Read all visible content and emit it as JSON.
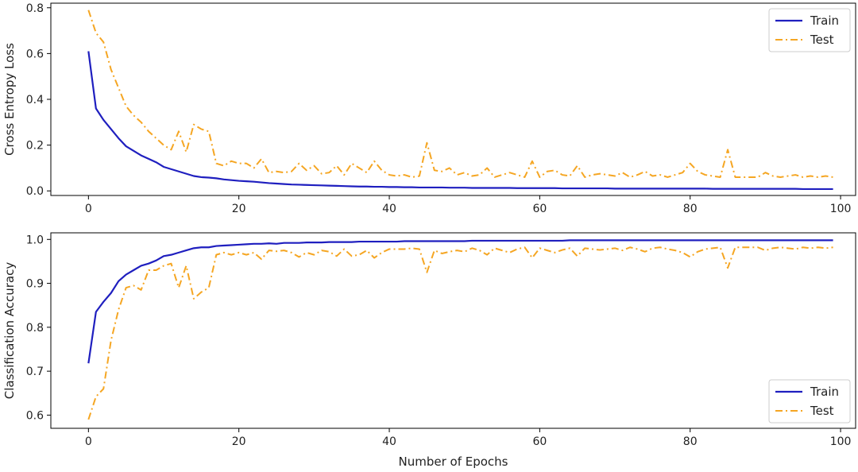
{
  "chart_data": [
    {
      "type": "line",
      "title": "",
      "xlabel": "",
      "ylabel": "Cross Entropy Loss",
      "xlim": [
        -5,
        102
      ],
      "ylim": [
        -0.02,
        0.82
      ],
      "xticks": [
        0,
        20,
        40,
        60,
        80,
        100
      ],
      "xtick_labels": [
        "0",
        "20",
        "40",
        "60",
        "80",
        "100"
      ],
      "yticks": [
        0.0,
        0.2,
        0.4,
        0.6,
        0.8
      ],
      "ytick_labels": [
        "0.0",
        "0.2",
        "0.4",
        "0.6",
        "0.8"
      ],
      "legend_position": "top-right",
      "series": [
        {
          "name": "Train",
          "color": "#1f1fbf",
          "style": "solid",
          "x": [
            0,
            1,
            2,
            3,
            4,
            5,
            6,
            7,
            8,
            9,
            10,
            11,
            12,
            13,
            14,
            15,
            16,
            17,
            18,
            19,
            20,
            21,
            22,
            23,
            24,
            25,
            26,
            27,
            28,
            29,
            30,
            31,
            32,
            33,
            34,
            35,
            36,
            37,
            38,
            39,
            40,
            41,
            42,
            43,
            44,
            45,
            46,
            47,
            48,
            49,
            50,
            51,
            52,
            53,
            54,
            55,
            56,
            57,
            58,
            59,
            60,
            61,
            62,
            63,
            64,
            65,
            66,
            67,
            68,
            69,
            70,
            71,
            72,
            73,
            74,
            75,
            76,
            77,
            78,
            79,
            80,
            81,
            82,
            83,
            84,
            85,
            86,
            87,
            88,
            89,
            90,
            91,
            92,
            93,
            94,
            95,
            96,
            97,
            98,
            99
          ],
          "values": [
            0.61,
            0.36,
            0.31,
            0.27,
            0.23,
            0.195,
            0.175,
            0.155,
            0.14,
            0.125,
            0.105,
            0.095,
            0.085,
            0.075,
            0.065,
            0.06,
            0.058,
            0.055,
            0.05,
            0.047,
            0.044,
            0.042,
            0.04,
            0.037,
            0.034,
            0.032,
            0.03,
            0.028,
            0.027,
            0.026,
            0.025,
            0.024,
            0.023,
            0.022,
            0.021,
            0.02,
            0.019,
            0.019,
            0.018,
            0.018,
            0.017,
            0.017,
            0.016,
            0.016,
            0.015,
            0.015,
            0.015,
            0.015,
            0.014,
            0.014,
            0.014,
            0.013,
            0.013,
            0.013,
            0.013,
            0.013,
            0.013,
            0.012,
            0.012,
            0.012,
            0.012,
            0.012,
            0.012,
            0.011,
            0.011,
            0.011,
            0.011,
            0.011,
            0.011,
            0.011,
            0.01,
            0.01,
            0.01,
            0.01,
            0.01,
            0.01,
            0.01,
            0.01,
            0.01,
            0.01,
            0.01,
            0.01,
            0.01,
            0.009,
            0.009,
            0.009,
            0.009,
            0.009,
            0.009,
            0.009,
            0.009,
            0.009,
            0.009,
            0.009,
            0.009,
            0.008,
            0.008,
            0.008,
            0.008,
            0.008
          ]
        },
        {
          "name": "Test",
          "color": "#f5a623",
          "style": "dashdot",
          "x": [
            0,
            1,
            2,
            3,
            4,
            5,
            6,
            7,
            8,
            9,
            10,
            11,
            12,
            13,
            14,
            15,
            16,
            17,
            18,
            19,
            20,
            21,
            22,
            23,
            24,
            25,
            26,
            27,
            28,
            29,
            30,
            31,
            32,
            33,
            34,
            35,
            36,
            37,
            38,
            39,
            40,
            41,
            42,
            43,
            44,
            45,
            46,
            47,
            48,
            49,
            50,
            51,
            52,
            53,
            54,
            55,
            56,
            57,
            58,
            59,
            60,
            61,
            62,
            63,
            64,
            65,
            66,
            67,
            68,
            69,
            70,
            71,
            72,
            73,
            74,
            75,
            76,
            77,
            78,
            79,
            80,
            81,
            82,
            83,
            84,
            85,
            86,
            87,
            88,
            89,
            90,
            91,
            92,
            93,
            94,
            95,
            96,
            97,
            98,
            99
          ],
          "values": [
            0.79,
            0.69,
            0.65,
            0.53,
            0.45,
            0.37,
            0.33,
            0.3,
            0.26,
            0.23,
            0.2,
            0.18,
            0.26,
            0.17,
            0.29,
            0.27,
            0.26,
            0.12,
            0.11,
            0.13,
            0.12,
            0.12,
            0.1,
            0.14,
            0.08,
            0.085,
            0.08,
            0.085,
            0.12,
            0.09,
            0.11,
            0.075,
            0.08,
            0.11,
            0.07,
            0.12,
            0.1,
            0.08,
            0.13,
            0.09,
            0.07,
            0.065,
            0.07,
            0.06,
            0.065,
            0.21,
            0.09,
            0.085,
            0.1,
            0.07,
            0.08,
            0.065,
            0.07,
            0.1,
            0.06,
            0.07,
            0.08,
            0.07,
            0.06,
            0.13,
            0.06,
            0.085,
            0.09,
            0.07,
            0.065,
            0.11,
            0.06,
            0.07,
            0.075,
            0.07,
            0.065,
            0.08,
            0.06,
            0.07,
            0.085,
            0.065,
            0.07,
            0.06,
            0.07,
            0.08,
            0.12,
            0.085,
            0.07,
            0.065,
            0.06,
            0.18,
            0.06,
            0.06,
            0.06,
            0.06,
            0.08,
            0.065,
            0.06,
            0.065,
            0.07,
            0.06,
            0.065,
            0.06,
            0.065,
            0.06
          ]
        }
      ]
    },
    {
      "type": "line",
      "title": "",
      "xlabel": "Number of Epochs",
      "ylabel": "Classification Accuracy",
      "xlim": [
        -5,
        102
      ],
      "ylim": [
        0.57,
        1.015
      ],
      "xticks": [
        0,
        20,
        40,
        60,
        80,
        100
      ],
      "xtick_labels": [
        "0",
        "20",
        "40",
        "60",
        "80",
        "100"
      ],
      "yticks": [
        0.6,
        0.7,
        0.8,
        0.9,
        1.0
      ],
      "ytick_labels": [
        "0.6",
        "0.7",
        "0.8",
        "0.9",
        "1.0"
      ],
      "legend_position": "bottom-right",
      "series": [
        {
          "name": "Train",
          "color": "#1f1fbf",
          "style": "solid",
          "x": [
            0,
            1,
            2,
            3,
            4,
            5,
            6,
            7,
            8,
            9,
            10,
            11,
            12,
            13,
            14,
            15,
            16,
            17,
            18,
            19,
            20,
            21,
            22,
            23,
            24,
            25,
            26,
            27,
            28,
            29,
            30,
            31,
            32,
            33,
            34,
            35,
            36,
            37,
            38,
            39,
            40,
            41,
            42,
            43,
            44,
            45,
            46,
            47,
            48,
            49,
            50,
            51,
            52,
            53,
            54,
            55,
            56,
            57,
            58,
            59,
            60,
            61,
            62,
            63,
            64,
            65,
            66,
            67,
            68,
            69,
            70,
            71,
            72,
            73,
            74,
            75,
            76,
            77,
            78,
            79,
            80,
            81,
            82,
            83,
            84,
            85,
            86,
            87,
            88,
            89,
            90,
            91,
            92,
            93,
            94,
            95,
            96,
            97,
            98,
            99
          ],
          "values": [
            0.718,
            0.835,
            0.858,
            0.878,
            0.905,
            0.92,
            0.93,
            0.94,
            0.945,
            0.952,
            0.962,
            0.965,
            0.97,
            0.975,
            0.98,
            0.982,
            0.982,
            0.985,
            0.986,
            0.987,
            0.988,
            0.989,
            0.99,
            0.99,
            0.991,
            0.99,
            0.992,
            0.992,
            0.992,
            0.993,
            0.993,
            0.993,
            0.994,
            0.994,
            0.994,
            0.994,
            0.995,
            0.995,
            0.995,
            0.995,
            0.995,
            0.995,
            0.996,
            0.996,
            0.996,
            0.996,
            0.996,
            0.996,
            0.996,
            0.996,
            0.996,
            0.997,
            0.997,
            0.997,
            0.997,
            0.997,
            0.997,
            0.997,
            0.997,
            0.997,
            0.997,
            0.997,
            0.997,
            0.997,
            0.998,
            0.998,
            0.998,
            0.998,
            0.998,
            0.998,
            0.998,
            0.998,
            0.998,
            0.998,
            0.998,
            0.998,
            0.998,
            0.998,
            0.998,
            0.998,
            0.998,
            0.998,
            0.998,
            0.998,
            0.998,
            0.998,
            0.998,
            0.998,
            0.998,
            0.998,
            0.998,
            0.998,
            0.998,
            0.998,
            0.998,
            0.998,
            0.998,
            0.998,
            0.998,
            0.998
          ]
        },
        {
          "name": "Test",
          "color": "#f5a623",
          "style": "dashdot",
          "x": [
            0,
            1,
            2,
            3,
            4,
            5,
            6,
            7,
            8,
            9,
            10,
            11,
            12,
            13,
            14,
            15,
            16,
            17,
            18,
            19,
            20,
            21,
            22,
            23,
            24,
            25,
            26,
            27,
            28,
            29,
            30,
            31,
            32,
            33,
            34,
            35,
            36,
            37,
            38,
            39,
            40,
            41,
            42,
            43,
            44,
            45,
            46,
            47,
            48,
            49,
            50,
            51,
            52,
            53,
            54,
            55,
            56,
            57,
            58,
            59,
            60,
            61,
            62,
            63,
            64,
            65,
            66,
            67,
            68,
            69,
            70,
            71,
            72,
            73,
            74,
            75,
            76,
            77,
            78,
            79,
            80,
            81,
            82,
            83,
            84,
            85,
            86,
            87,
            88,
            89,
            90,
            91,
            92,
            93,
            94,
            95,
            96,
            97,
            98,
            99
          ],
          "values": [
            0.59,
            0.642,
            0.66,
            0.77,
            0.84,
            0.89,
            0.895,
            0.885,
            0.93,
            0.93,
            0.94,
            0.945,
            0.89,
            0.94,
            0.865,
            0.88,
            0.89,
            0.965,
            0.97,
            0.965,
            0.97,
            0.965,
            0.97,
            0.955,
            0.975,
            0.973,
            0.975,
            0.97,
            0.96,
            0.97,
            0.965,
            0.975,
            0.972,
            0.962,
            0.978,
            0.962,
            0.965,
            0.975,
            0.958,
            0.97,
            0.978,
            0.978,
            0.978,
            0.98,
            0.978,
            0.925,
            0.975,
            0.968,
            0.972,
            0.975,
            0.972,
            0.98,
            0.975,
            0.965,
            0.98,
            0.975,
            0.97,
            0.978,
            0.982,
            0.958,
            0.98,
            0.975,
            0.97,
            0.976,
            0.98,
            0.962,
            0.98,
            0.978,
            0.976,
            0.978,
            0.98,
            0.975,
            0.982,
            0.978,
            0.972,
            0.98,
            0.982,
            0.978,
            0.975,
            0.97,
            0.96,
            0.972,
            0.978,
            0.98,
            0.982,
            0.935,
            0.982,
            0.982,
            0.982,
            0.982,
            0.975,
            0.98,
            0.982,
            0.98,
            0.978,
            0.982,
            0.98,
            0.982,
            0.98,
            0.982
          ]
        }
      ]
    }
  ]
}
